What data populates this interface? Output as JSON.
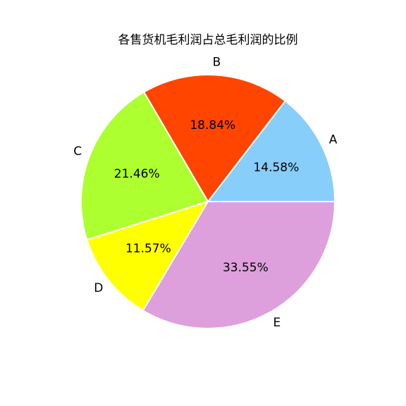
{
  "chart_data": {
    "type": "pie",
    "title": "各售货机毛利润占总毛利润的比例",
    "categories": [
      "A",
      "B",
      "C",
      "D",
      "E"
    ],
    "values": [
      14.58,
      18.84,
      21.46,
      11.57,
      33.55
    ],
    "labels": [
      "14.58%",
      "18.84%",
      "21.46%",
      "11.57%",
      "33.55%"
    ],
    "colors": [
      "#87CEFA",
      "#FF4500",
      "#ADFF2F",
      "#FFFF00",
      "#DDA0DD"
    ],
    "start_angle_deg": 0,
    "direction": "counterclockwise"
  }
}
